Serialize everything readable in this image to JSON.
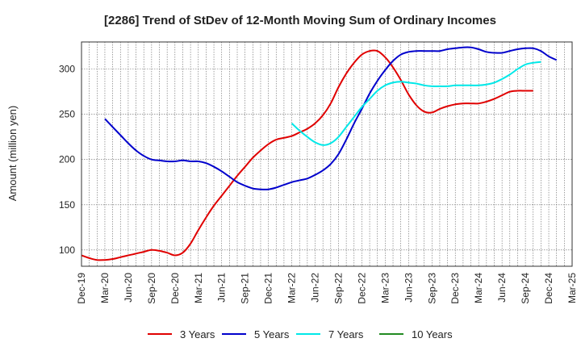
{
  "chart_data": {
    "type": "line",
    "title": "[2286]  Trend of StDev of 12-Month Moving Sum of Ordinary Incomes",
    "ylabel": "Amount (million yen)",
    "xlabel": "",
    "ylim": [
      82,
      330
    ],
    "yticks": [
      100,
      150,
      200,
      250,
      300
    ],
    "x_start": "Dec-19",
    "x_end": "Mar-25",
    "x_ticks": [
      "Dec-19",
      "Mar-20",
      "Jun-20",
      "Sep-20",
      "Dec-20",
      "Mar-21",
      "Jun-21",
      "Sep-21",
      "Dec-21",
      "Mar-22",
      "Jun-22",
      "Sep-22",
      "Dec-22",
      "Mar-23",
      "Jun-23",
      "Sep-23",
      "Dec-23",
      "Mar-24",
      "Jun-24",
      "Sep-24",
      "Dec-24",
      "Mar-25"
    ],
    "grid": true,
    "legend_position": "bottom",
    "series": [
      {
        "name": "3 Years",
        "color": "#e00000",
        "start": "Dec-19",
        "values": [
          94,
          91,
          89,
          89,
          90,
          92,
          94,
          96,
          98,
          100,
          99,
          97,
          94,
          97,
          107,
          122,
          136,
          149,
          160,
          171,
          182,
          192,
          202,
          210,
          217,
          222,
          224,
          226,
          230,
          234,
          240,
          249,
          262,
          280,
          295,
          307,
          316,
          320,
          320,
          313,
          302,
          288,
          272,
          260,
          253,
          252,
          256,
          259,
          261,
          262,
          262,
          262,
          264,
          267,
          271,
          275,
          276,
          276,
          276
        ]
      },
      {
        "name": "5 Years",
        "color": "#0000cc",
        "start": "Mar-20",
        "values": [
          245,
          236,
          227,
          218,
          210,
          204,
          200,
          199,
          198,
          198,
          199,
          198,
          198,
          196,
          192,
          187,
          181,
          175,
          171,
          168,
          167,
          167,
          169,
          172,
          175,
          177,
          179,
          183,
          188,
          195,
          206,
          222,
          240,
          256,
          273,
          287,
          299,
          309,
          316,
          319,
          320,
          320,
          320,
          320,
          322,
          323,
          324,
          324,
          322,
          319,
          318,
          318,
          320,
          322,
          323,
          323,
          320,
          314,
          310
        ]
      },
      {
        "name": "7 Years",
        "color": "#00e8e8",
        "start": "Mar-22",
        "values": [
          240,
          232,
          225,
          219,
          216,
          218,
          225,
          236,
          247,
          258,
          267,
          276,
          282,
          285,
          286,
          285,
          284,
          282,
          281,
          281,
          281,
          282,
          282,
          282,
          282,
          283,
          285,
          289,
          294,
          300,
          305,
          307,
          308
        ]
      },
      {
        "name": "10 Years",
        "color": "#228b22",
        "start": "Dec-24",
        "values": []
      }
    ]
  }
}
